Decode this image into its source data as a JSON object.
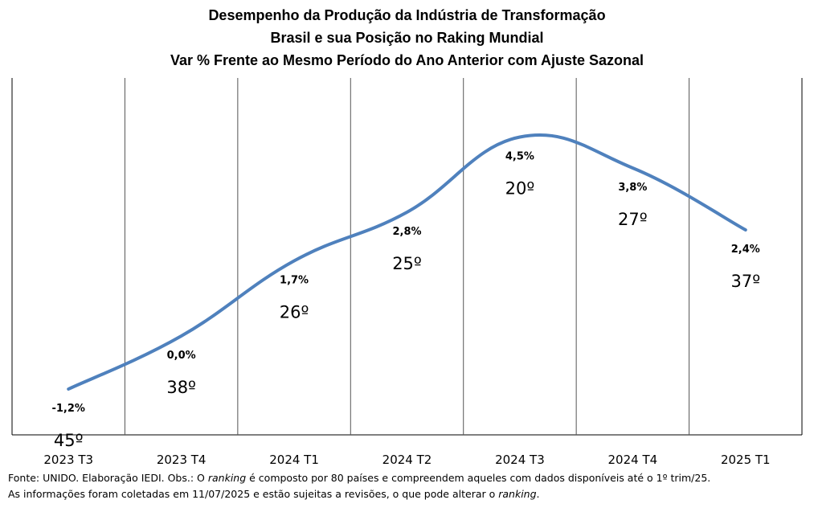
{
  "title_lines": [
    "Desempenho da Produção da Indústria de Transformação",
    "Brasil e sua Posição no Raking Mundial",
    "Var % Frente ao Mesmo Período do Ano Anterior com Ajuste Sazonal"
  ],
  "chart_data": {
    "type": "line",
    "title": "Desempenho da Produção da Indústria de Transformação — Brasil e sua Posição no Raking Mundial — Var % Frente ao Mesmo Período do Ano Anterior com Ajuste Sazonal",
    "categories": [
      "2023 T3",
      "2023 T4",
      "2024 T1",
      "2024 T2",
      "2024 T3",
      "2024 T4",
      "2025 T1"
    ],
    "values": [
      -1.2,
      0.0,
      1.7,
      2.8,
      4.5,
      3.8,
      2.4
    ],
    "value_labels": [
      "-1,2%",
      "0,0%",
      "1,7%",
      "2,8%",
      "4,5%",
      "3,8%",
      "2,4%"
    ],
    "ranks": [
      "45º",
      "38º",
      "26º",
      "25º",
      "20º",
      "27º",
      "37º"
    ],
    "line_color": "#4F81BD",
    "grid": "vertical",
    "legend": "none"
  },
  "notes": {
    "line1_a": "Fonte: UNIDO. Elaboração IEDI. Obs.: O ",
    "line1_em": "ranking",
    "line1_b": " é composto  por 80 países e compreendem  aqueles com dados disponíveis até o 1º trim/25.",
    "line2_a": "As informações  foram  coletadas em 11/07/2025 e estão sujeitas a revisões, o que pode  alterar o ",
    "line2_em": "ranking",
    "line2_b": "."
  }
}
